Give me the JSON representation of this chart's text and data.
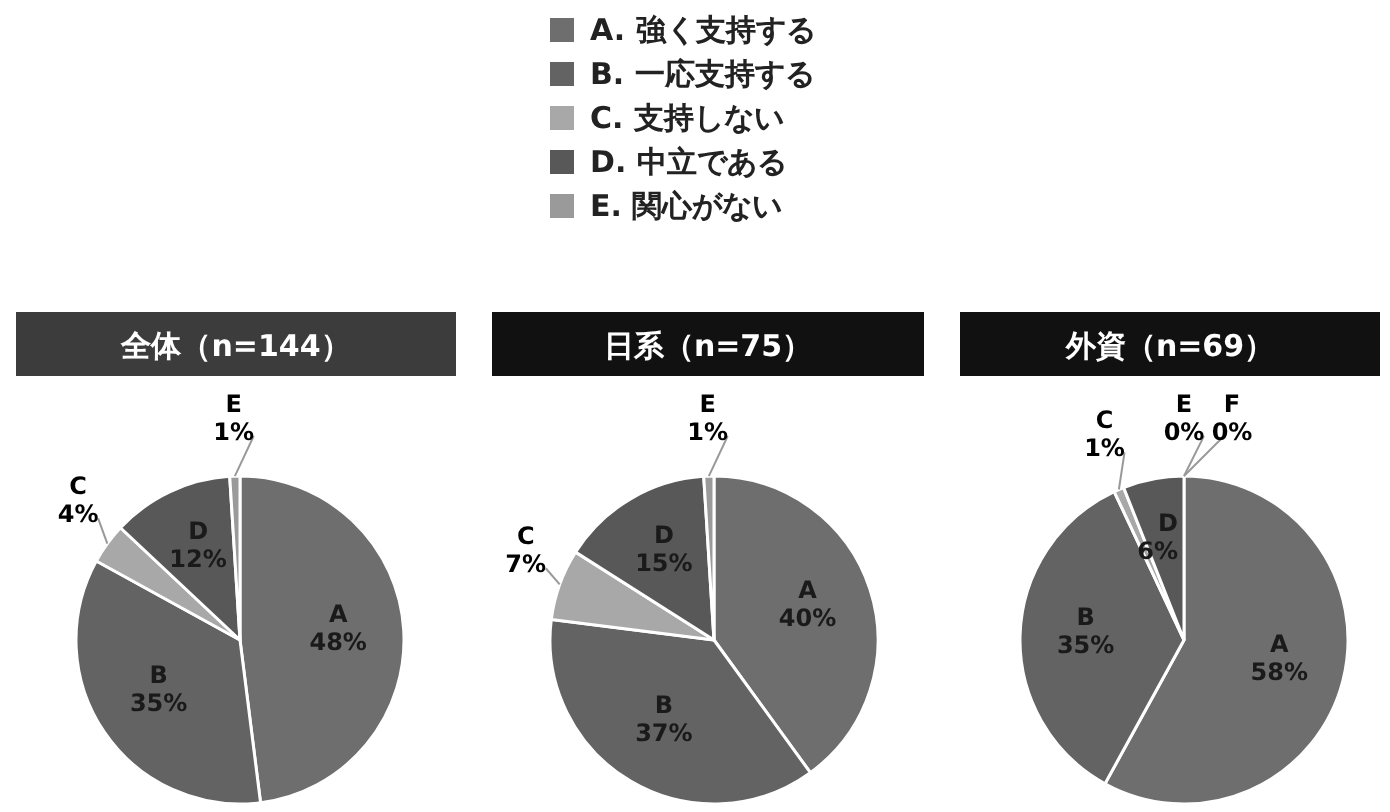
{
  "chart_data": [
    {
      "type": "pie",
      "title": "全体（n=144）",
      "annotations": [
        "A. 強く支持する",
        "B. 一応支持する",
        "C. 支持しない",
        "D. 中立である",
        "E. 関心がない"
      ],
      "categories": [
        "A",
        "B",
        "C",
        "D",
        "E"
      ],
      "values": [
        48,
        35,
        4,
        12,
        1
      ],
      "colors": [
        "#6e6e6e",
        "#636363",
        "#a8a8a8",
        "#585858",
        "#9a9a9a"
      ],
      "value_labels": [
        "48%",
        "35%",
        "4%",
        "12%",
        "1%"
      ]
    },
    {
      "type": "pie",
      "title": "日系（n=75）",
      "categories": [
        "A",
        "B",
        "C",
        "D",
        "E"
      ],
      "values": [
        40,
        37,
        7,
        15,
        1
      ],
      "colors": [
        "#6e6e6e",
        "#636363",
        "#a8a8a8",
        "#585858",
        "#9a9a9a"
      ],
      "value_labels": [
        "40%",
        "37%",
        "7%",
        "15%",
        "1%"
      ]
    },
    {
      "type": "pie",
      "title": "外資（n=69）",
      "categories": [
        "A",
        "B",
        "C",
        "D",
        "E",
        "F"
      ],
      "values": [
        58,
        35,
        1,
        6,
        0,
        0
      ],
      "colors": [
        "#6e6e6e",
        "#636363",
        "#a8a8a8",
        "#585858",
        "#9a9a9a",
        "#888888"
      ],
      "value_labels": [
        "58%",
        "35%",
        "1%",
        "6%",
        "0%",
        "0%"
      ]
    }
  ]
}
